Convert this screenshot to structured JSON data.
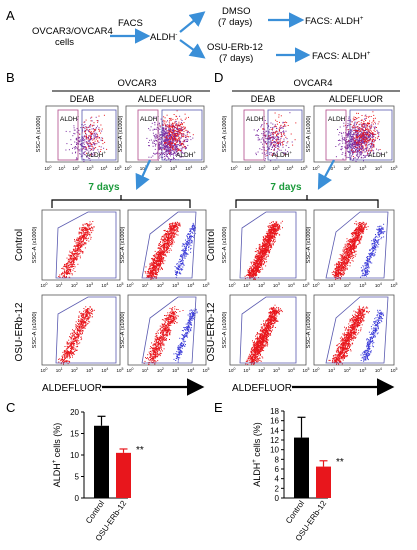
{
  "panel_labels": {
    "a": "A",
    "b": "B",
    "c": "C",
    "d": "D",
    "e": "E"
  },
  "schema": {
    "start_line1": "OVCAR3/OVCAR4",
    "start_line2": "cells",
    "facs": "FACS",
    "aldh_neg": "ALDH",
    "aldh_neg_sup": "-",
    "dmso": "DMSO",
    "dmso_days": "(7 days)",
    "osu": "OSU-ERb-12",
    "osu_days": "(7 days)",
    "result1": "FACS: ALDH",
    "result1_sup": "+",
    "result2": "FACS: ALDH",
    "result2_sup": "+"
  },
  "flow": {
    "cell_line_left": "OVCAR3",
    "cell_line_right": "OVCAR4",
    "col_deab": "DEAB",
    "col_aldefluor": "ALDEFLUOR",
    "gate_neg": "ALDH",
    "gate_neg_sup": "-",
    "gate_pos": "ALDH",
    "gate_pos_sup": "+",
    "ylabel_main": "SSC-A",
    "ylabel_unit": "(x1000)",
    "days_label": "7 days",
    "row_control": "Control",
    "row_osu": "OSU-ERb-12",
    "xlabel": "ALDEFLUOR",
    "x_ticks": [
      "10",
      "10",
      "10",
      "10",
      "10",
      "10"
    ],
    "x_tick_exps": [
      "0",
      "1",
      "2",
      "3",
      "4",
      "5"
    ],
    "colors": {
      "dense": "#e8161c",
      "sparse": "#3a3ad8",
      "purple": "#7a2aa0",
      "gate": "#5a5ab0",
      "days": "#1a9a3a",
      "arrow": "#3a8fd8"
    }
  },
  "chart_data": [
    {
      "type": "bar",
      "panel": "C",
      "categories": [
        "Control",
        "OSU-ERb-12"
      ],
      "values": [
        16.8,
        10.5
      ],
      "errors": [
        2.2,
        0.9
      ],
      "ylabel": "ALDH",
      "ylabel_sup": "+",
      "ylabel_tail": " cells (%)",
      "ylim": [
        0,
        20
      ],
      "yticks": [
        0,
        5,
        10,
        15,
        20
      ],
      "significance": "**",
      "colors": [
        "#000000",
        "#e8161c"
      ]
    },
    {
      "type": "bar",
      "panel": "E",
      "categories": [
        "Control",
        "OSU-ERb-12"
      ],
      "values": [
        12.5,
        6.5
      ],
      "errors": [
        4.2,
        1.2
      ],
      "ylabel": "ALDH",
      "ylabel_sup": "+",
      "ylabel_tail": " cells (%)",
      "ylim": [
        0,
        18
      ],
      "yticks": [
        0,
        2,
        4,
        6,
        8,
        10,
        12,
        14,
        16,
        18
      ],
      "significance": "**",
      "colors": [
        "#000000",
        "#e8161c"
      ]
    }
  ]
}
